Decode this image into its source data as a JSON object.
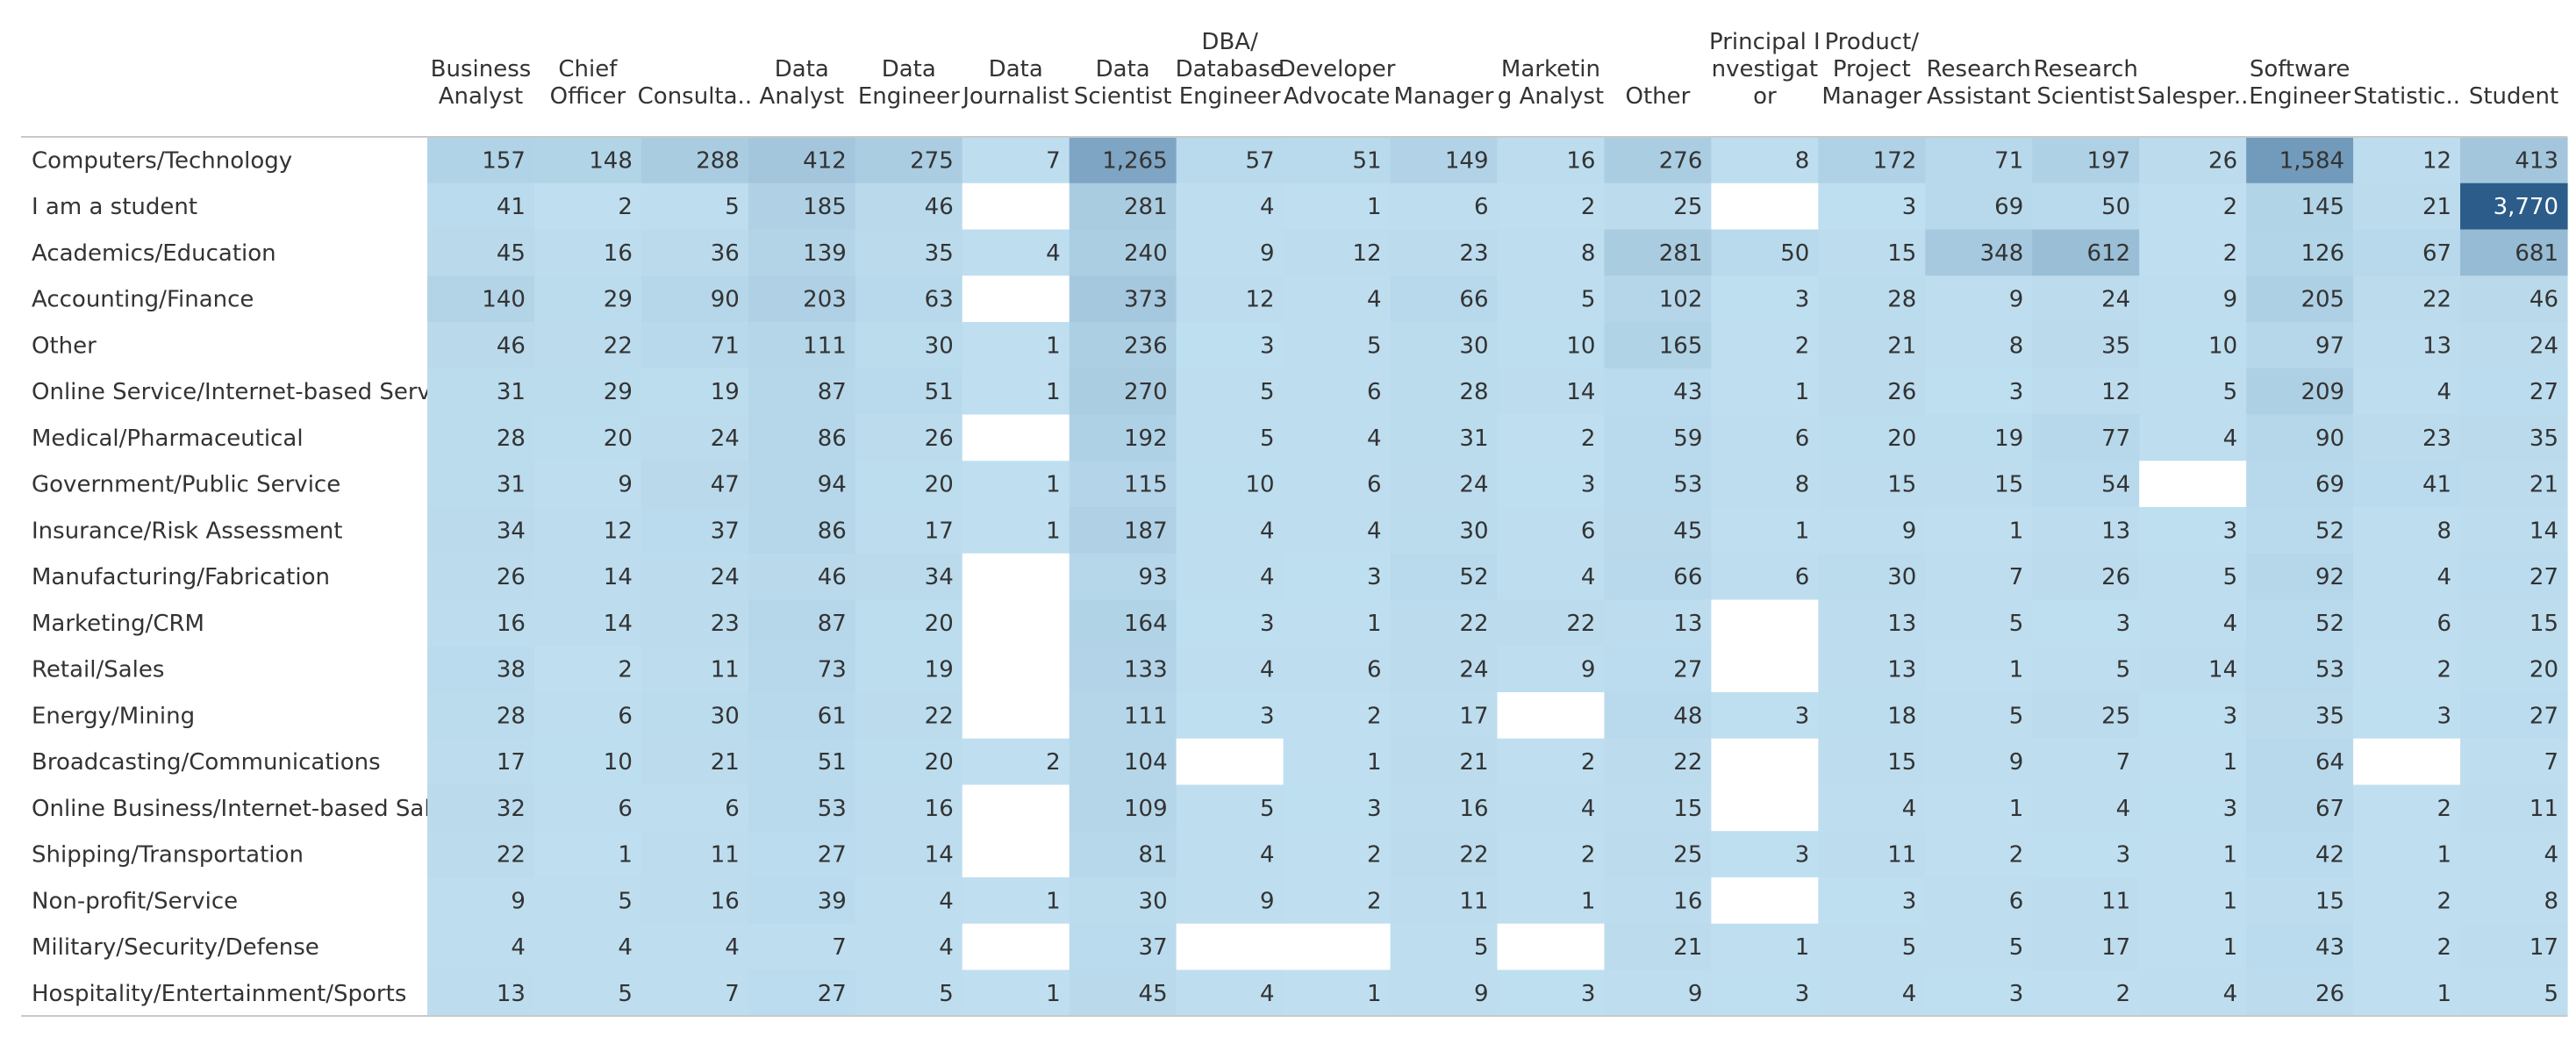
{
  "chart_data": {
    "type": "heatmap",
    "columns": [
      [
        "Business",
        "Analyst"
      ],
      [
        "Chief",
        "Officer"
      ],
      [
        "Consulta.."
      ],
      [
        "Data",
        "Analyst"
      ],
      [
        "Data",
        "Engineer"
      ],
      [
        "Data",
        "Journalist"
      ],
      [
        "Data",
        "Scientist"
      ],
      [
        "DBA/",
        "Database",
        "Engineer"
      ],
      [
        "Developer",
        "Advocate"
      ],
      [
        "Manager"
      ],
      [
        "Marketin",
        "g Analyst"
      ],
      [
        "Other"
      ],
      [
        "Principal I",
        "nvestigat",
        "or"
      ],
      [
        "Product/",
        "Project",
        "Manager"
      ],
      [
        "Research",
        "Assistant"
      ],
      [
        "Research",
        "Scientist"
      ],
      [
        "Salesper.."
      ],
      [
        "Software",
        "Engineer"
      ],
      [
        "Statistic.."
      ],
      [
        "Student"
      ]
    ],
    "rows": [
      "Computers/Technology",
      "I am a student",
      "Academics/Education",
      "Accounting/Finance",
      "Other",
      "Online Service/Internet-based Services",
      "Medical/Pharmaceutical",
      "Government/Public Service",
      "Insurance/Risk Assessment",
      "Manufacturing/Fabrication",
      "Marketing/CRM",
      "Retail/Sales",
      "Energy/Mining",
      "Broadcasting/Communications",
      "Online Business/Internet-based Sales",
      "Shipping/Transportation",
      "Non-profit/Service",
      "Military/Security/Defense",
      "Hospitality/Entertainment/Sports"
    ],
    "values": [
      [
        157,
        148,
        288,
        412,
        275,
        7,
        1265,
        57,
        51,
        149,
        16,
        276,
        8,
        172,
        71,
        197,
        26,
        1584,
        12,
        413
      ],
      [
        41,
        2,
        5,
        185,
        46,
        null,
        281,
        4,
        1,
        6,
        2,
        25,
        null,
        3,
        69,
        50,
        2,
        145,
        21,
        3770
      ],
      [
        45,
        16,
        36,
        139,
        35,
        4,
        240,
        9,
        12,
        23,
        8,
        281,
        50,
        15,
        348,
        612,
        2,
        126,
        67,
        681
      ],
      [
        140,
        29,
        90,
        203,
        63,
        null,
        373,
        12,
        4,
        66,
        5,
        102,
        3,
        28,
        9,
        24,
        9,
        205,
        22,
        46
      ],
      [
        46,
        22,
        71,
        111,
        30,
        1,
        236,
        3,
        5,
        30,
        10,
        165,
        2,
        21,
        8,
        35,
        10,
        97,
        13,
        24
      ],
      [
        31,
        29,
        19,
        87,
        51,
        1,
        270,
        5,
        6,
        28,
        14,
        43,
        1,
        26,
        3,
        12,
        5,
        209,
        4,
        27
      ],
      [
        28,
        20,
        24,
        86,
        26,
        null,
        192,
        5,
        4,
        31,
        2,
        59,
        6,
        20,
        19,
        77,
        4,
        90,
        23,
        35
      ],
      [
        31,
        9,
        47,
        94,
        20,
        1,
        115,
        10,
        6,
        24,
        3,
        53,
        8,
        15,
        15,
        54,
        null,
        69,
        41,
        21
      ],
      [
        34,
        12,
        37,
        86,
        17,
        1,
        187,
        4,
        4,
        30,
        6,
        45,
        1,
        9,
        1,
        13,
        3,
        52,
        8,
        14
      ],
      [
        26,
        14,
        24,
        46,
        34,
        null,
        93,
        4,
        3,
        52,
        4,
        66,
        6,
        30,
        7,
        26,
        5,
        92,
        4,
        27
      ],
      [
        16,
        14,
        23,
        87,
        20,
        null,
        164,
        3,
        1,
        22,
        22,
        13,
        null,
        13,
        5,
        3,
        4,
        52,
        6,
        15
      ],
      [
        38,
        2,
        11,
        73,
        19,
        null,
        133,
        4,
        6,
        24,
        9,
        27,
        null,
        13,
        1,
        5,
        14,
        53,
        2,
        20
      ],
      [
        28,
        6,
        30,
        61,
        22,
        null,
        111,
        3,
        2,
        17,
        null,
        48,
        3,
        18,
        5,
        25,
        3,
        35,
        3,
        27
      ],
      [
        17,
        10,
        21,
        51,
        20,
        2,
        104,
        null,
        1,
        21,
        2,
        22,
        null,
        15,
        9,
        7,
        1,
        64,
        null,
        7
      ],
      [
        32,
        6,
        6,
        53,
        16,
        null,
        109,
        5,
        3,
        16,
        4,
        15,
        null,
        4,
        1,
        4,
        3,
        67,
        2,
        11
      ],
      [
        22,
        1,
        11,
        27,
        14,
        null,
        81,
        4,
        2,
        22,
        2,
        25,
        3,
        11,
        2,
        3,
        1,
        42,
        1,
        4
      ],
      [
        9,
        5,
        16,
        39,
        4,
        1,
        30,
        9,
        2,
        11,
        1,
        16,
        null,
        3,
        6,
        11,
        1,
        15,
        2,
        8
      ],
      [
        4,
        4,
        4,
        7,
        4,
        null,
        37,
        null,
        null,
        5,
        null,
        21,
        1,
        5,
        5,
        17,
        1,
        43,
        2,
        17
      ],
      [
        13,
        5,
        7,
        27,
        5,
        1,
        45,
        4,
        1,
        9,
        3,
        9,
        3,
        4,
        3,
        2,
        4,
        26,
        1,
        5
      ]
    ],
    "color_scale": {
      "low": "#bfdff0",
      "high": "#2b5c8a",
      "empty": "#ffffff"
    },
    "grid": false
  }
}
